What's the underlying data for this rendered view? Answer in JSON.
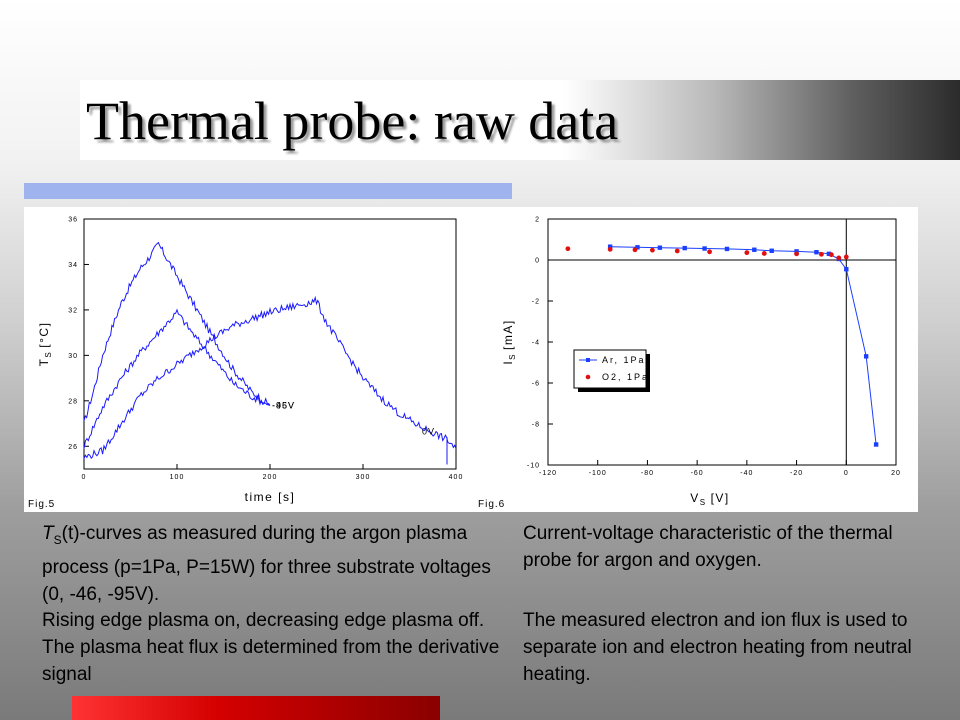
{
  "slide": {
    "title": "Thermal probe: raw data",
    "caption_left_symbol": "T",
    "caption_left_sub": "S",
    "caption_left_1": "(t)-curves as measured during the argon plasma process (p=1Pa, P=15W) for three substrate voltages (0, -46, -95V).",
    "caption_left_2": "Rising edge plasma on, decreasing edge plasma off. The plasma heat flux is determined from the derivative signal",
    "caption_right_1": "Current-voltage characteristic of the thermal probe for argon and oxygen.",
    "caption_right_2": "The measured electron and ion flux is used to separate ion and electron heating from neutral heating."
  },
  "colors": {
    "line": "#1a1aff",
    "argon": "#1a3fff",
    "oxygen": "#e01010"
  },
  "chart_data": [
    {
      "type": "line",
      "figure_label": "Fig.5",
      "xlabel": "time [s]",
      "ylabel_symbol": "T",
      "ylabel_sub": "S",
      "ylabel_unit": "[°C]",
      "xlim": [
        0,
        400
      ],
      "ylim": [
        25,
        36
      ],
      "xticks": [
        0,
        100,
        200,
        300,
        400
      ],
      "yticks": [
        26,
        28,
        30,
        32,
        34,
        36
      ],
      "xtick_labels": [
        "0",
        "100",
        "200",
        "300",
        "400"
      ],
      "ytick_labels": [
        "26",
        "28",
        "30",
        "32",
        "34",
        "36"
      ],
      "series": [
        {
          "name": "-95V",
          "x": [
            0,
            10,
            20,
            30,
            40,
            50,
            60,
            70,
            80,
            90,
            100,
            120,
            140,
            160,
            180,
            200
          ],
          "y": [
            27.0,
            28.4,
            30.0,
            31.2,
            32.3,
            33.1,
            33.8,
            34.3,
            34.9,
            34.2,
            33.5,
            32.1,
            30.7,
            29.4,
            28.4,
            27.8
          ]
        },
        {
          "name": "-46V",
          "x": [
            0,
            20,
            40,
            60,
            80,
            100,
            120,
            140,
            160,
            180,
            200
          ],
          "y": [
            26.0,
            27.7,
            29.0,
            30.1,
            31.0,
            31.9,
            30.8,
            29.8,
            28.8,
            28.2,
            27.8
          ]
        },
        {
          "name": "0V",
          "x": [
            0,
            20,
            40,
            60,
            80,
            100,
            120,
            140,
            160,
            180,
            200,
            220,
            240,
            250,
            260,
            280,
            300,
            320,
            340,
            360,
            380,
            390,
            400
          ],
          "y": [
            25.5,
            25.8,
            27.0,
            28.2,
            29.0,
            29.6,
            30.2,
            30.8,
            31.3,
            31.6,
            31.9,
            32.1,
            32.3,
            32.4,
            31.5,
            30.2,
            29.0,
            28.1,
            27.4,
            26.9,
            26.5,
            26.3,
            25.9
          ]
        }
      ]
    },
    {
      "type": "line",
      "figure_label": "Fig.6",
      "xlabel_symbol": "V",
      "xlabel_sub": "S",
      "xlabel_unit": "[V]",
      "ylabel_symbol": "I",
      "ylabel_sub": "S",
      "ylabel_unit": "[mA]",
      "xlim": [
        -120,
        20
      ],
      "ylim": [
        -10,
        2
      ],
      "xticks": [
        -120,
        -100,
        -80,
        -60,
        -40,
        -20,
        0,
        20
      ],
      "yticks": [
        -10,
        -8,
        -6,
        -4,
        -2,
        0,
        2
      ],
      "xtick_labels": [
        "-120",
        "-100",
        "-80",
        "-60",
        "-40",
        "-20",
        "0",
        "20"
      ],
      "ytick_labels": [
        "-10",
        "-8",
        "-6",
        "-4",
        "-2",
        "0",
        "2"
      ],
      "legend_position": "center-left",
      "series": [
        {
          "name": "Ar, 1Pa",
          "marker": "square",
          "connected": true,
          "x": [
            -95,
            -84,
            -75,
            -65,
            -57,
            -48,
            -37,
            -30,
            -20,
            -12,
            -7,
            -3,
            0,
            8,
            12
          ],
          "y": [
            0.65,
            0.62,
            0.6,
            0.58,
            0.56,
            0.54,
            0.5,
            0.45,
            0.42,
            0.38,
            0.3,
            0.05,
            -0.45,
            -4.7,
            -9.0
          ]
        },
        {
          "name": "O2, 1Pa",
          "marker": "circle",
          "connected": false,
          "x": [
            -112,
            -95,
            -85,
            -78,
            -68,
            -55,
            -40,
            -33,
            -20,
            -10,
            -6,
            -3,
            0
          ],
          "y": [
            0.55,
            0.52,
            0.5,
            0.48,
            0.44,
            0.4,
            0.36,
            0.32,
            0.3,
            0.28,
            0.26,
            0.1,
            0.15
          ]
        }
      ]
    }
  ]
}
